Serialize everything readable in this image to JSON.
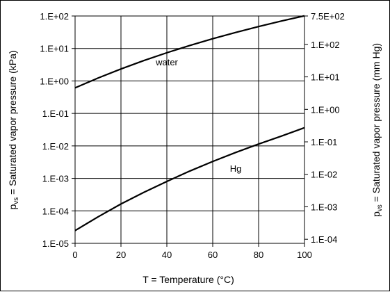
{
  "chart_data": {
    "type": "line",
    "title": "",
    "xlabel": "T = Temperature (°C)",
    "ylabel": "p_vs = Saturated vapor pressure (kPa)",
    "y2label": "p_vs = Saturated vapor pressure (mm Hg)",
    "ylabel_main": "p",
    "ylabel_sub": "vs",
    "ylabel_rest": " = Saturated vapor pressure (kPa)",
    "y2label_main": "p",
    "y2label_sub": "vs",
    "y2label_rest": " = Saturated vapor pressure (mm Hg)",
    "xlim": [
      0,
      100
    ],
    "ylim": [
      1e-05,
      100
    ],
    "yscale": "log",
    "grid": true,
    "x_ticks": [
      0,
      20,
      40,
      60,
      80,
      100
    ],
    "x_tick_labels": [
      "0",
      "20",
      "40",
      "60",
      "80",
      "100"
    ],
    "y_ticks": [
      1e-05,
      0.0001,
      0.001,
      0.01,
      0.1,
      1,
      10,
      100
    ],
    "y_tick_labels": [
      "1.E-05",
      "1.E-04",
      "1.E-03",
      "1.E-02",
      "1.E-01",
      "1.E+00",
      "1.E+01",
      "1.E+02"
    ],
    "y2_ticks": [
      0.0001,
      0.001,
      0.01,
      0.1,
      1,
      10,
      100,
      750
    ],
    "y2_tick_labels": [
      "1.E-04",
      "1.E-03",
      "1.E-02",
      "1.E-01",
      "1.E+00",
      "1.E+01",
      "1.E+02",
      "7.5E+02"
    ],
    "series": [
      {
        "name": "water",
        "x": [
          0,
          10,
          20,
          30,
          40,
          50,
          60,
          70,
          80,
          90,
          100
        ],
        "values": [
          0.611,
          1.228,
          2.34,
          4.25,
          7.38,
          12.35,
          19.94,
          31.19,
          47.4,
          70.1,
          101.3
        ]
      },
      {
        "name": "Hg",
        "x": [
          0,
          10,
          20,
          30,
          40,
          50,
          60,
          70,
          80,
          90,
          100
        ],
        "values": [
          2.47e-05,
          6.53e-05,
          0.000163,
          0.000372,
          0.000806,
          0.00168,
          0.00332,
          0.00627,
          0.0114,
          0.0201,
          0.0363
        ]
      }
    ],
    "line_color": "#000000"
  }
}
